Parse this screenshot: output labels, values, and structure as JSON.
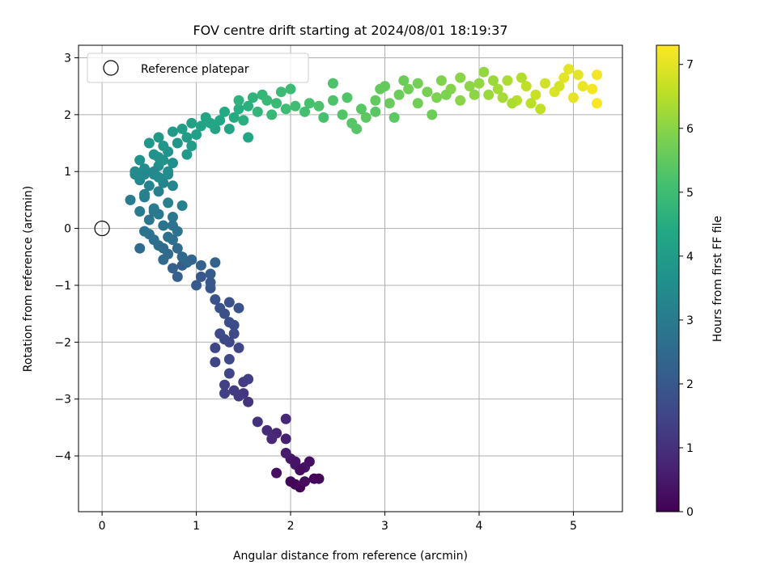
{
  "chart_data": {
    "type": "scatter",
    "title": "FOV centre drift starting at 2024/08/01 18:19:37",
    "xlabel": "Angular distance from reference (arcmin)",
    "ylabel": "Rotation from reference (arcmin)",
    "xlim": [
      -0.25,
      5.52
    ],
    "ylim": [
      -4.98,
      3.22
    ],
    "xticks": [
      "0",
      "1",
      "2",
      "3",
      "4",
      "5"
    ],
    "yticks": [
      "−4",
      "−3",
      "−2",
      "−1",
      "0",
      "1",
      "2",
      "3"
    ],
    "grid": true,
    "legend": {
      "position": "top-left",
      "entries": [
        "Reference platepar"
      ]
    },
    "reference_point": {
      "x": 0,
      "y": 0
    },
    "colorbar": {
      "label": "Hours from first FF file",
      "range": [
        0,
        7.3
      ],
      "ticks": [
        "0",
        "1",
        "2",
        "3",
        "4",
        "5",
        "6",
        "7"
      ],
      "colormap": "viridis"
    },
    "series": [
      {
        "points_xyt": [
          [
            2.1,
            -4.55,
            0.0
          ],
          [
            2.25,
            -4.4,
            0.05
          ],
          [
            2.05,
            -4.5,
            0.1
          ],
          [
            2.3,
            -4.4,
            0.15
          ],
          [
            2.15,
            -4.45,
            0.2
          ],
          [
            2.2,
            -4.1,
            0.3
          ],
          [
            1.85,
            -4.3,
            0.3
          ],
          [
            2.15,
            -4.2,
            0.35
          ],
          [
            2.0,
            -4.05,
            0.45
          ],
          [
            1.95,
            -3.95,
            0.55
          ],
          [
            2.05,
            -4.15,
            0.5
          ],
          [
            1.95,
            -3.7,
            0.65
          ],
          [
            1.85,
            -3.6,
            0.75
          ],
          [
            1.95,
            -3.35,
            0.8
          ],
          [
            1.8,
            -3.7,
            0.85
          ],
          [
            1.75,
            -3.55,
            0.9
          ],
          [
            1.65,
            -3.4,
            1.05
          ],
          [
            1.55,
            -3.05,
            1.1
          ],
          [
            1.5,
            -2.9,
            1.15
          ],
          [
            1.45,
            -2.95,
            1.2
          ],
          [
            1.5,
            -2.7,
            1.25
          ],
          [
            1.4,
            -2.85,
            1.25
          ],
          [
            1.55,
            -2.65,
            1.3
          ],
          [
            1.3,
            -2.9,
            1.35
          ],
          [
            1.3,
            -2.75,
            1.4
          ],
          [
            1.35,
            -2.55,
            1.45
          ],
          [
            1.2,
            -2.35,
            1.5
          ],
          [
            1.2,
            -2.1,
            1.55
          ],
          [
            1.45,
            -2.1,
            1.55
          ],
          [
            1.35,
            -2.3,
            1.6
          ],
          [
            1.4,
            -1.85,
            1.6
          ],
          [
            1.25,
            -1.85,
            1.65
          ],
          [
            1.4,
            -1.7,
            1.65
          ],
          [
            1.35,
            -1.65,
            1.7
          ],
          [
            1.3,
            -1.5,
            1.75
          ],
          [
            1.25,
            -1.4,
            1.8
          ],
          [
            1.45,
            -1.4,
            1.8
          ],
          [
            1.35,
            -1.3,
            1.85
          ],
          [
            1.2,
            -1.25,
            1.9
          ],
          [
            1.15,
            -1.05,
            1.95
          ],
          [
            1.05,
            -0.85,
            2.0
          ],
          [
            1.0,
            -1.0,
            2.05
          ],
          [
            1.15,
            -0.8,
            2.1
          ],
          [
            0.85,
            -0.65,
            2.15
          ],
          [
            0.8,
            -0.85,
            2.2
          ],
          [
            0.75,
            -0.7,
            2.25
          ],
          [
            1.2,
            -0.6,
            2.3
          ],
          [
            1.05,
            -0.65,
            2.3
          ],
          [
            0.95,
            -0.55,
            2.35
          ],
          [
            0.9,
            -0.6,
            2.4
          ],
          [
            0.85,
            -0.5,
            2.45
          ],
          [
            0.8,
            -0.35,
            2.5
          ],
          [
            0.7,
            -0.45,
            2.55
          ],
          [
            0.65,
            -0.55,
            2.55
          ],
          [
            0.6,
            -0.3,
            2.6
          ],
          [
            0.55,
            -0.2,
            2.65
          ],
          [
            0.5,
            -0.1,
            2.7
          ],
          [
            0.7,
            -0.15,
            2.7
          ],
          [
            0.8,
            -0.05,
            2.75
          ],
          [
            0.45,
            -0.05,
            2.8
          ],
          [
            0.65,
            0.05,
            2.8
          ],
          [
            0.5,
            0.15,
            2.85
          ],
          [
            0.75,
            0.2,
            2.9
          ],
          [
            0.6,
            0.25,
            2.95
          ],
          [
            0.4,
            0.3,
            3.0
          ],
          [
            0.55,
            0.35,
            3.0
          ],
          [
            0.3,
            0.5,
            3.05
          ],
          [
            0.45,
            0.55,
            3.1
          ],
          [
            0.6,
            0.65,
            3.15
          ],
          [
            0.85,
            0.4,
            3.15
          ],
          [
            0.7,
            0.45,
            3.2
          ],
          [
            0.5,
            0.75,
            3.25
          ],
          [
            0.65,
            0.8,
            3.3
          ],
          [
            0.75,
            0.75,
            3.3
          ],
          [
            0.4,
            0.85,
            3.35
          ],
          [
            0.55,
            0.95,
            3.4
          ],
          [
            0.35,
            0.95,
            3.45
          ],
          [
            0.7,
            0.95,
            3.5
          ],
          [
            0.45,
            1.05,
            3.55
          ],
          [
            0.6,
            1.1,
            3.6
          ],
          [
            0.75,
            1.15,
            3.6
          ],
          [
            0.4,
            1.2,
            3.65
          ],
          [
            0.55,
            1.3,
            3.7
          ],
          [
            0.7,
            1.35,
            3.75
          ],
          [
            0.5,
            1.5,
            3.8
          ],
          [
            0.65,
            1.45,
            3.8
          ],
          [
            0.8,
            1.5,
            3.85
          ],
          [
            0.6,
            1.6,
            3.9
          ],
          [
            0.75,
            1.7,
            3.95
          ],
          [
            0.9,
            1.6,
            4.0
          ],
          [
            0.85,
            1.75,
            4.05
          ],
          [
            1.0,
            1.65,
            4.1
          ],
          [
            0.95,
            1.85,
            4.15
          ],
          [
            1.05,
            1.8,
            4.2
          ],
          [
            1.2,
            1.75,
            4.25
          ],
          [
            1.1,
            1.95,
            4.3
          ],
          [
            1.25,
            1.9,
            4.35
          ],
          [
            1.3,
            2.05,
            4.4
          ],
          [
            1.4,
            1.95,
            4.45
          ],
          [
            1.45,
            2.1,
            4.5
          ],
          [
            1.5,
            1.9,
            4.55
          ],
          [
            1.55,
            2.15,
            4.6
          ],
          [
            1.45,
            2.25,
            4.65
          ],
          [
            1.6,
            2.3,
            4.7
          ],
          [
            1.65,
            2.05,
            4.75
          ],
          [
            1.7,
            2.35,
            4.8
          ],
          [
            1.75,
            2.25,
            4.85
          ],
          [
            1.85,
            2.2,
            4.9
          ],
          [
            1.9,
            2.4,
            4.95
          ],
          [
            1.95,
            2.1,
            5.0
          ],
          [
            2.05,
            2.15,
            5.05
          ],
          [
            2.15,
            2.05,
            5.1
          ],
          [
            2.2,
            2.2,
            5.15
          ],
          [
            2.3,
            2.15,
            5.2
          ],
          [
            2.45,
            2.25,
            5.25
          ],
          [
            2.55,
            2.0,
            5.3
          ],
          [
            2.65,
            1.85,
            5.35
          ],
          [
            2.75,
            2.1,
            5.4
          ],
          [
            2.8,
            1.95,
            5.45
          ],
          [
            2.9,
            2.25,
            5.5
          ],
          [
            2.95,
            2.45,
            5.55
          ],
          [
            3.05,
            2.2,
            5.6
          ],
          [
            3.15,
            2.35,
            5.65
          ],
          [
            3.25,
            2.45,
            5.7
          ],
          [
            3.35,
            2.55,
            5.75
          ],
          [
            3.45,
            2.4,
            5.8
          ],
          [
            3.55,
            2.3,
            5.85
          ],
          [
            3.6,
            2.6,
            5.9
          ],
          [
            3.7,
            2.45,
            5.95
          ],
          [
            3.8,
            2.25,
            6.0
          ],
          [
            3.9,
            2.5,
            6.05
          ],
          [
            4.0,
            2.55,
            6.1
          ],
          [
            4.1,
            2.35,
            6.2
          ],
          [
            4.2,
            2.45,
            6.3
          ],
          [
            4.3,
            2.6,
            6.4
          ],
          [
            4.4,
            2.25,
            6.5
          ],
          [
            4.5,
            2.5,
            6.6
          ],
          [
            4.6,
            2.35,
            6.7
          ],
          [
            4.7,
            2.55,
            6.8
          ],
          [
            4.8,
            2.4,
            6.9
          ],
          [
            4.9,
            2.65,
            7.0
          ],
          [
            5.0,
            2.3,
            7.05
          ],
          [
            5.1,
            2.5,
            7.1
          ],
          [
            5.2,
            2.45,
            7.2
          ],
          [
            5.25,
            2.2,
            7.25
          ],
          [
            2.9,
            2.05,
            5.4
          ],
          [
            2.6,
            2.3,
            5.3
          ],
          [
            3.0,
            2.5,
            5.55
          ],
          [
            3.35,
            2.2,
            5.7
          ],
          [
            3.65,
            2.35,
            5.85
          ],
          [
            4.05,
            2.75,
            6.1
          ],
          [
            4.25,
            2.3,
            6.3
          ],
          [
            4.55,
            2.2,
            6.55
          ],
          [
            4.85,
            2.5,
            6.85
          ],
          [
            5.05,
            2.7,
            7.0
          ],
          [
            1.35,
            1.75,
            4.25
          ],
          [
            1.15,
            1.85,
            4.25
          ],
          [
            0.95,
            1.45,
            4.05
          ],
          [
            1.55,
            1.6,
            4.35
          ],
          [
            2.35,
            1.95,
            5.15
          ],
          [
            2.7,
            1.75,
            5.35
          ],
          [
            3.1,
            1.95,
            5.45
          ],
          [
            3.5,
            2.0,
            5.65
          ],
          [
            2.0,
            2.45,
            4.95
          ],
          [
            1.8,
            2.0,
            4.85
          ],
          [
            2.45,
            2.55,
            5.25
          ],
          [
            3.2,
            2.6,
            5.65
          ],
          [
            3.8,
            2.65,
            6.0
          ],
          [
            4.15,
            2.6,
            6.2
          ],
          [
            4.45,
            2.65,
            6.45
          ],
          [
            4.65,
            2.1,
            6.6
          ],
          [
            4.95,
            2.8,
            7.0
          ],
          [
            5.25,
            2.7,
            7.2
          ],
          [
            4.35,
            2.2,
            6.4
          ],
          [
            3.95,
            2.35,
            6.05
          ],
          [
            2.05,
            -4.1,
            0.4
          ],
          [
            2.1,
            -4.25,
            0.25
          ],
          [
            2.0,
            -4.45,
            0.12
          ],
          [
            1.35,
            -2.0,
            1.55
          ],
          [
            1.3,
            -1.95,
            1.62
          ],
          [
            1.15,
            -0.95,
            1.98
          ],
          [
            0.65,
            -0.35,
            2.55
          ],
          [
            0.75,
            0.05,
            2.75
          ],
          [
            0.55,
            0.3,
            2.95
          ],
          [
            0.45,
            0.95,
            3.42
          ],
          [
            0.35,
            1.0,
            3.48
          ],
          [
            0.6,
            1.25,
            3.68
          ],
          [
            0.55,
            1.0,
            3.38
          ],
          [
            0.65,
            1.2,
            3.7
          ],
          [
            0.9,
            1.3,
            3.95
          ],
          [
            0.6,
            0.9,
            3.45
          ],
          [
            0.7,
            1.0,
            3.5
          ],
          [
            0.45,
            0.6,
            3.15
          ],
          [
            0.75,
            -0.2,
            2.68
          ],
          [
            0.4,
            -0.35,
            2.55
          ]
        ]
      }
    ]
  }
}
